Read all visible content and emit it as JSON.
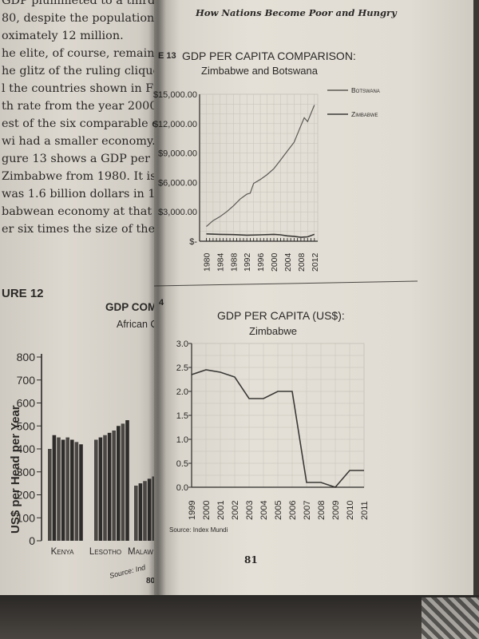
{
  "left_page": {
    "body_lines": [
      "GDP plummeted to a third of the years of",
      "80, despite the population having",
      "oximately 12 million.",
      "he elite, of course, remain very rich",
      "he glitz of the ruling clique are far",
      "l the countries shown in Figure 12",
      "th rate from the year 2000 was",
      "est of the six comparable economies",
      "wi had a smaller economy.",
      "gure 13 shows a GDP per capita comparison",
      "Zimbabwe from 1980. It is worth",
      "was 1.6 billion dollars in 1980",
      "babwean economy at that time. By",
      "er six times the size of the Zimbabwe"
    ],
    "figure_label": "URE 12",
    "page_number": "80",
    "chart_data": {
      "type": "bar",
      "title": "GDP COMPARI",
      "subtitle": "African Coun",
      "ylabel": "US$ per Head per Year",
      "ylim": [
        0,
        800
      ],
      "yticks": [
        "0",
        "100",
        "200",
        "300",
        "400",
        "500",
        "600",
        "700",
        "800"
      ],
      "categories": [
        "Kenya",
        "Lesotho",
        "Malaw"
      ],
      "series_values": [
        [
          400,
          460,
          450,
          440,
          450,
          440,
          430,
          420
        ],
        [
          440,
          450,
          460,
          470,
          480,
          500,
          510,
          525
        ],
        [
          240,
          250,
          260,
          270,
          280,
          300,
          320,
          350
        ]
      ],
      "source": "Source: Ind"
    }
  },
  "right_page": {
    "running_header": "How Nations Become Poor and Hungry",
    "figure_label_top": "E 13",
    "figure_label_bottom": "4",
    "page_number": "81",
    "chart_top": {
      "type": "line",
      "title": "GDP PER CAPITA COMPARISON:",
      "subtitle": "Zimbabwe and Botswana",
      "yticks": [
        "$-",
        "$3,000.00",
        "$6,000.00",
        "$9,000.00",
        "$12,000.00",
        "$15,000.00"
      ],
      "ylim": [
        0,
        15000
      ],
      "xticks": [
        "1980",
        "1984",
        "1988",
        "1992",
        "1996",
        "2000",
        "2004",
        "2008",
        "2012"
      ],
      "series": [
        {
          "name": "Botswana",
          "x": [
            1980,
            1982,
            1984,
            1986,
            1988,
            1990,
            1992,
            1993,
            1994,
            1996,
            1998,
            2000,
            2002,
            2004,
            2006,
            2008,
            2009,
            2010,
            2012
          ],
          "values": [
            1500,
            2100,
            2500,
            3000,
            3600,
            4300,
            4800,
            4900,
            5900,
            6300,
            6800,
            7400,
            8300,
            9200,
            10100,
            11800,
            12600,
            12200,
            13900
          ]
        },
        {
          "name": "Zimbabwe",
          "x": [
            1980,
            1984,
            1988,
            1992,
            1996,
            2000,
            2002,
            2004,
            2006,
            2008,
            2010,
            2012
          ],
          "values": [
            750,
            700,
            680,
            620,
            650,
            700,
            650,
            550,
            500,
            400,
            450,
            700
          ]
        }
      ]
    },
    "chart_bottom": {
      "type": "line",
      "title": "GDP PER CAPITA (US$):",
      "subtitle": "Zimbabwe",
      "yticks": [
        "0.0",
        "0.5",
        "1.0",
        "1.5",
        "2.0",
        "2.5",
        "3.0"
      ],
      "ylim": [
        0,
        3.0
      ],
      "categories": [
        "1999",
        "2000",
        "2001",
        "2002",
        "2003",
        "2004",
        "2005",
        "2006",
        "2007",
        "2008",
        "2009",
        "2010",
        "2011"
      ],
      "values": [
        2.35,
        2.45,
        2.4,
        2.3,
        1.85,
        1.85,
        2.0,
        2.0,
        0.1,
        0.1,
        0.0,
        0.35,
        0.35
      ],
      "source": "Source: Index Mundi"
    }
  }
}
